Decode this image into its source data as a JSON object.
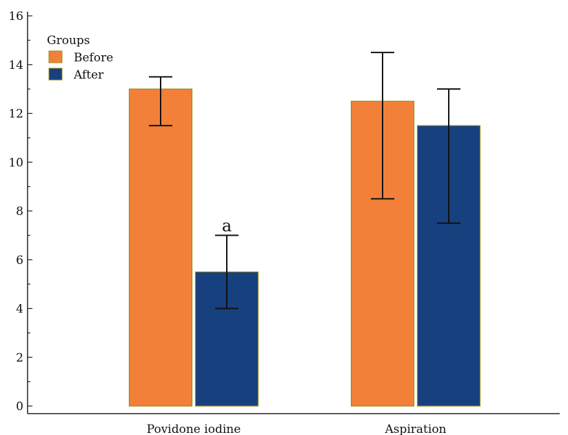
{
  "chart_data": {
    "type": "bar",
    "categories": [
      "Povidone iodine",
      "Aspiration"
    ],
    "series": [
      {
        "name": "Before",
        "values": [
          13.0,
          12.5
        ],
        "err_low": [
          11.5,
          8.5
        ],
        "err_high": [
          13.5,
          14.5
        ]
      },
      {
        "name": "After",
        "values": [
          5.5,
          11.5
        ],
        "err_low": [
          4.0,
          7.5
        ],
        "err_high": [
          7.0,
          13.0
        ]
      }
    ],
    "colors": [
      "#f28038",
      "#17407e"
    ],
    "bar_edge_color": "#9a8a1a",
    "legend_title": "Groups",
    "legend_position": "top-left",
    "ylim": [
      0,
      16
    ],
    "yticks": [
      0,
      2,
      4,
      6,
      8,
      10,
      12,
      14,
      16
    ],
    "title": "",
    "xlabel": "",
    "ylabel": "",
    "grid": false,
    "annotations": [
      {
        "text": "a",
        "category": "Povidone iodine",
        "series": "After"
      }
    ]
  }
}
